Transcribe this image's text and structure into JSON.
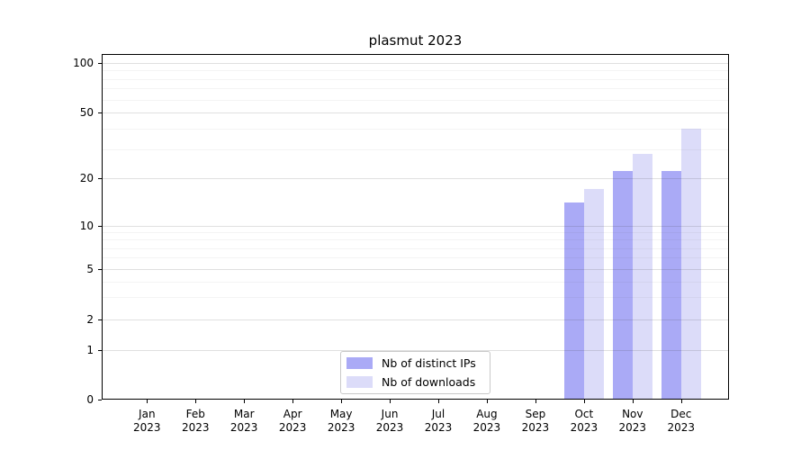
{
  "chart_data": {
    "type": "bar",
    "title": "plasmut 2023",
    "categories": [
      "Jan 2023",
      "Feb 2023",
      "Mar 2023",
      "Apr 2023",
      "May 2023",
      "Jun 2023",
      "Jul 2023",
      "Aug 2023",
      "Sep 2023",
      "Oct 2023",
      "Nov 2023",
      "Dec 2023"
    ],
    "series": [
      {
        "name": "Nb of distinct IPs",
        "color": "#aaaaf6",
        "values": [
          0,
          0,
          0,
          0,
          0,
          0,
          0,
          0,
          0,
          14,
          22,
          22
        ]
      },
      {
        "name": "Nb of downloads",
        "color": "#dcdcf9",
        "values": [
          0,
          0,
          0,
          0,
          0,
          0,
          0,
          0,
          0,
          17,
          28,
          40
        ]
      }
    ],
    "y_axis": {
      "scale": "log-like",
      "tick_values": [
        0,
        1,
        2,
        5,
        10,
        20,
        50,
        100
      ],
      "tick_labels": [
        "0",
        "1",
        "2",
        "5",
        "10",
        "20",
        "50",
        "100"
      ],
      "minor_tick_values": [
        3,
        4,
        6,
        7,
        8,
        9,
        30,
        40,
        60,
        70,
        80,
        90
      ],
      "ylim": [
        0,
        112
      ]
    },
    "legend_position": "lower center",
    "grid": "horizontal, drawn above bars"
  },
  "legend": {
    "items": [
      {
        "label": "Nb of distinct IPs",
        "color": "#aaaaf6"
      },
      {
        "label": "Nb of downloads",
        "color": "#dcdcf9"
      }
    ]
  }
}
